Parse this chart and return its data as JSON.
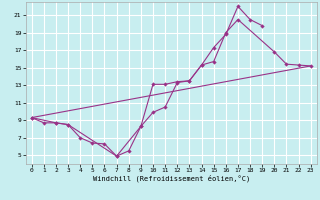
{
  "xlabel": "Windchill (Refroidissement éolien,°C)",
  "bg_color": "#c8eef0",
  "line_color": "#993388",
  "grid_color": "#ffffff",
  "xlim": [
    -0.5,
    23.5
  ],
  "ylim": [
    4.0,
    22.5
  ],
  "xticks": [
    0,
    1,
    2,
    3,
    4,
    5,
    6,
    7,
    8,
    9,
    10,
    11,
    12,
    13,
    14,
    15,
    16,
    17,
    18,
    19,
    20,
    21,
    22,
    23
  ],
  "yticks": [
    5,
    7,
    9,
    11,
    13,
    15,
    17,
    19,
    21
  ],
  "line1_x": [
    0,
    1,
    2,
    3,
    4,
    5,
    6,
    7,
    8,
    9,
    10,
    11,
    12,
    13,
    14,
    15,
    16,
    17,
    18,
    19
  ],
  "line1_y": [
    9.3,
    8.7,
    8.7,
    8.5,
    7.0,
    6.4,
    6.3,
    4.9,
    5.5,
    8.3,
    9.9,
    10.5,
    13.3,
    13.5,
    15.3,
    17.3,
    18.8,
    22.0,
    20.5,
    19.8
  ],
  "line2_x": [
    0,
    2,
    3,
    7,
    9,
    10,
    11,
    12,
    13,
    14,
    15,
    16,
    17,
    20,
    21,
    22,
    23
  ],
  "line2_y": [
    9.3,
    8.7,
    8.5,
    4.9,
    8.3,
    13.1,
    13.1,
    13.4,
    13.5,
    15.3,
    15.7,
    19.0,
    20.5,
    16.8,
    15.4,
    15.3,
    15.2
  ],
  "line3_x": [
    0,
    23
  ],
  "line3_y": [
    9.3,
    15.2
  ]
}
